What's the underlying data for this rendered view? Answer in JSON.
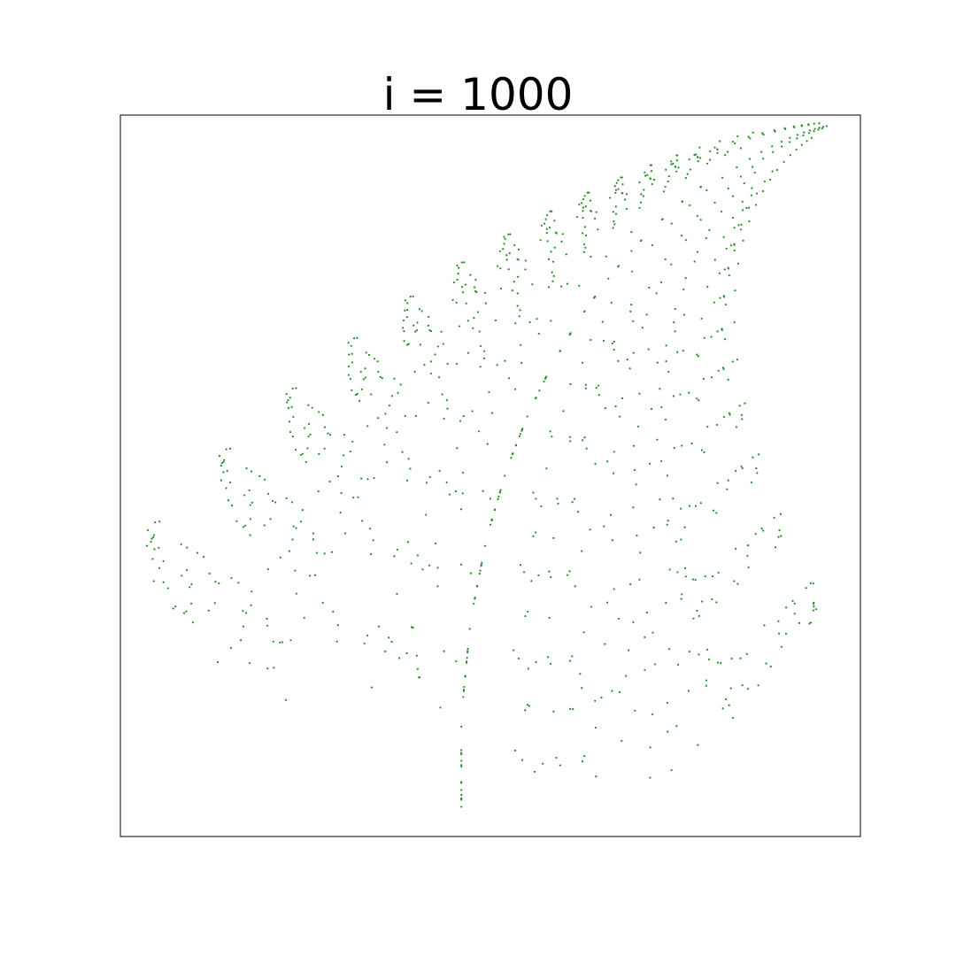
{
  "chart_data": {
    "type": "scatter",
    "title": "i = 1000",
    "xlabel": "",
    "ylabel": "",
    "axes_visible": false,
    "grid": false,
    "marker_color": "#228b22",
    "frame_color": "#000000",
    "xlim": [
      -2.35,
      2.75
    ],
    "ylim": [
      -0.1,
      10.1
    ],
    "generator": {
      "kind": "barnsley-fern",
      "points": 1000,
      "start": [
        0,
        0
      ],
      "maps": [
        {
          "p": 0.01,
          "a": 0.0,
          "b": 0.0,
          "c": 0.0,
          "d": 0.16,
          "e": 0.0,
          "f": 0.0
        },
        {
          "p": 0.85,
          "a": 0.85,
          "b": 0.04,
          "c": -0.04,
          "d": 0.85,
          "e": 0.0,
          "f": 1.6
        },
        {
          "p": 0.07,
          "a": 0.2,
          "b": -0.26,
          "c": 0.23,
          "d": 0.22,
          "e": 0.0,
          "f": 1.6
        },
        {
          "p": 0.07,
          "a": -0.15,
          "b": 0.28,
          "c": 0.26,
          "d": 0.24,
          "e": 0.0,
          "f": 0.44
        }
      ]
    }
  }
}
